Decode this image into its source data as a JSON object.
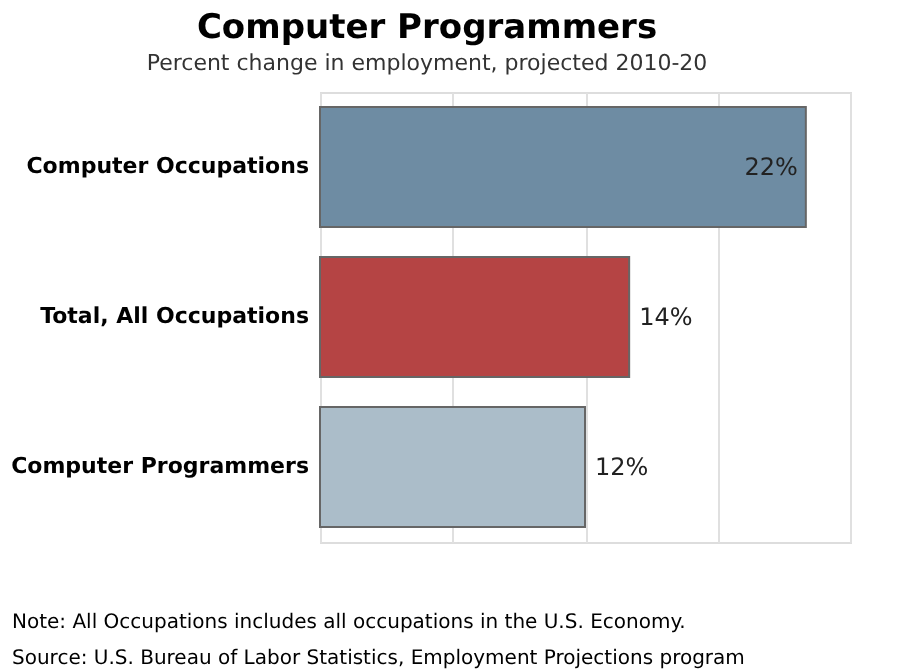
{
  "chart_data": {
    "type": "bar",
    "orientation": "horizontal",
    "title": "Computer Programmers",
    "subtitle": "Percent change in employment, projected 2010-20",
    "categories": [
      "Computer Occupations",
      "Total, All Occupations",
      "Computer Programmers"
    ],
    "values": [
      22,
      14,
      12
    ],
    "colors": [
      "#6e8ca3",
      "#b54444",
      "#abbdc9"
    ],
    "value_labels": [
      "22%",
      "14%",
      "12%"
    ],
    "xlim": [
      0,
      24
    ],
    "xticks": [
      {
        "value": 0,
        "label": null
      },
      {
        "value": 6,
        "label": null
      },
      {
        "value": 12,
        "label": null
      },
      {
        "value": 18,
        "label": null
      },
      {
        "value": 24,
        "label": null
      }
    ],
    "grid": "x",
    "tick_labels": "y",
    "annotations": [
      "Note: All Occupations includes all occupations in the U.S. Economy.",
      "Source: U.S. Bureau of Labor Statistics, Employment Projections program"
    ]
  }
}
